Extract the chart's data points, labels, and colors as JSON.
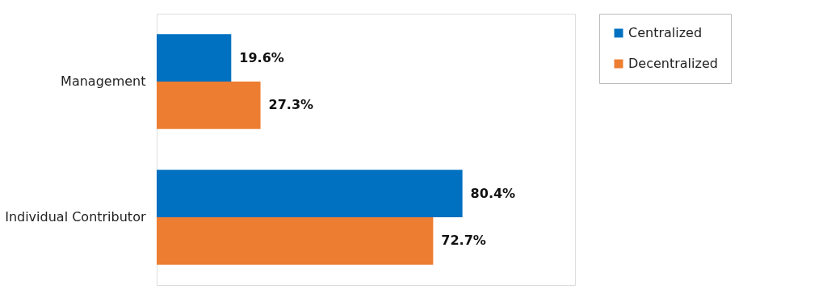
{
  "chart_data": {
    "type": "bar",
    "orientation": "horizontal",
    "categories": [
      "Management",
      "Individual Contributor"
    ],
    "xlim": [
      0,
      110
    ],
    "tick_labels": "y",
    "grid": false,
    "legend": "right",
    "series": [
      {
        "name": "Centralized",
        "color": "#0070c0",
        "values": [
          19.6,
          80.4
        ],
        "value_labels": [
          "19.6%",
          "80.4%"
        ]
      },
      {
        "name": "Decentralized",
        "color": "#ed7d31",
        "values": [
          27.3,
          72.7
        ],
        "value_labels": [
          "27.3%",
          "72.7%"
        ]
      }
    ]
  }
}
